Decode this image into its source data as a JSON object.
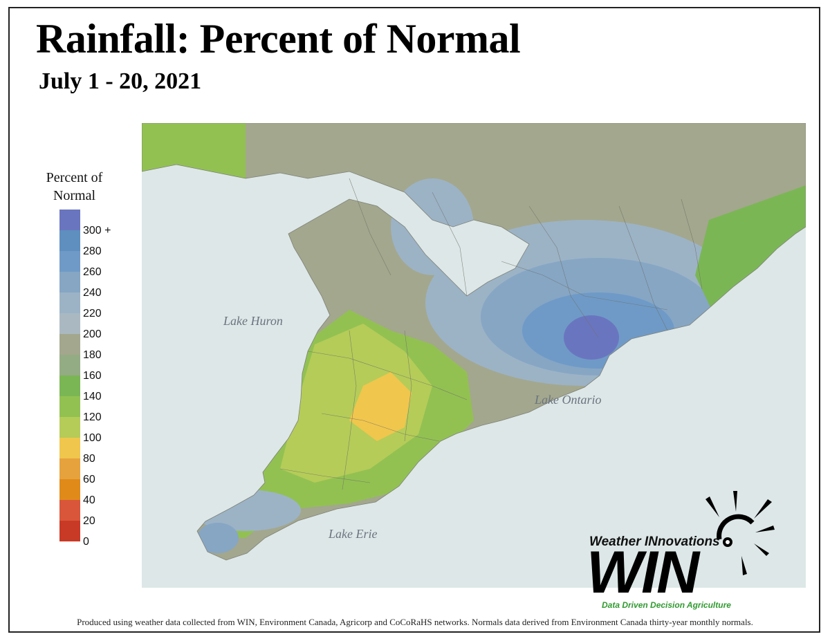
{
  "title": "Rainfall: Percent of Normal",
  "subtitle": "July 1 - 20, 2021",
  "legend": {
    "title": "Percent of Normal",
    "swatches": [
      {
        "range": "300+",
        "color": "#6a75bf"
      },
      {
        "range": "280-300",
        "color": "#5e8fbf"
      },
      {
        "range": "260-280",
        "color": "#6f9ac7"
      },
      {
        "range": "240-260",
        "color": "#86a6c4"
      },
      {
        "range": "220-240",
        "color": "#9cb3c6"
      },
      {
        "range": "200-220",
        "color": "#aab9c1"
      },
      {
        "range": "180-200",
        "color": "#a3a78d"
      },
      {
        "range": "160-180",
        "color": "#94ac83"
      },
      {
        "range": "140-160",
        "color": "#7bb655"
      },
      {
        "range": "120-140",
        "color": "#92c152"
      },
      {
        "range": "100-120",
        "color": "#b5cc58"
      },
      {
        "range": "80-100",
        "color": "#f0c64d"
      },
      {
        "range": "60-80",
        "color": "#e6a23d"
      },
      {
        "range": "40-60",
        "color": "#e08a1a"
      },
      {
        "range": "20-40",
        "color": "#d9563a"
      },
      {
        "range": "0-20",
        "color": "#c93a26"
      }
    ],
    "tick_labels": [
      "300",
      "280",
      "260",
      "240",
      "220",
      "200",
      "180",
      "160",
      "140",
      "120",
      "100",
      "80",
      "60",
      "40",
      "20",
      "0"
    ],
    "top_suffix": "+"
  },
  "map": {
    "region": "Southern Ontario",
    "water_color": "#dce6e6",
    "lakes": [
      {
        "name": "Lake Huron"
      },
      {
        "name": "Lake Ontario"
      },
      {
        "name": "Lake Erie"
      }
    ]
  },
  "logo": {
    "brand": "Weather INnovations",
    "mark": "WIN",
    "tagline": "Data Driven Decision Agriculture"
  },
  "footer": "Produced using weather data collected from WIN, Environment Canada, Agricorp and CoCoRaHS networks. Normals data derived from Environment Canada thirty-year monthly normals."
}
